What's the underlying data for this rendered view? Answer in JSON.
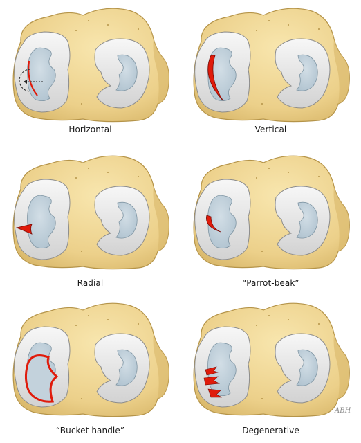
{
  "figure": {
    "panels": [
      {
        "id": "horizontal",
        "label": "Horizontal"
      },
      {
        "id": "vertical",
        "label": "Vertical"
      },
      {
        "id": "radial",
        "label": "Radial"
      },
      {
        "id": "parrot-beak",
        "label": "“Parrot-beak”"
      },
      {
        "id": "bucket-handle",
        "label": "“Bucket handle”"
      },
      {
        "id": "degenerative",
        "label": "Degenerative"
      }
    ],
    "signature": "ABH"
  },
  "colors": {
    "bone": "#efd58f",
    "bone_edge": "#b59449",
    "meniscus": "#e6e6e6",
    "meniscus_edge": "#8c8c8c",
    "cartilage": "#c3d2dc",
    "tear": "#e01b0b",
    "tear_edge": "#7a0c05"
  }
}
